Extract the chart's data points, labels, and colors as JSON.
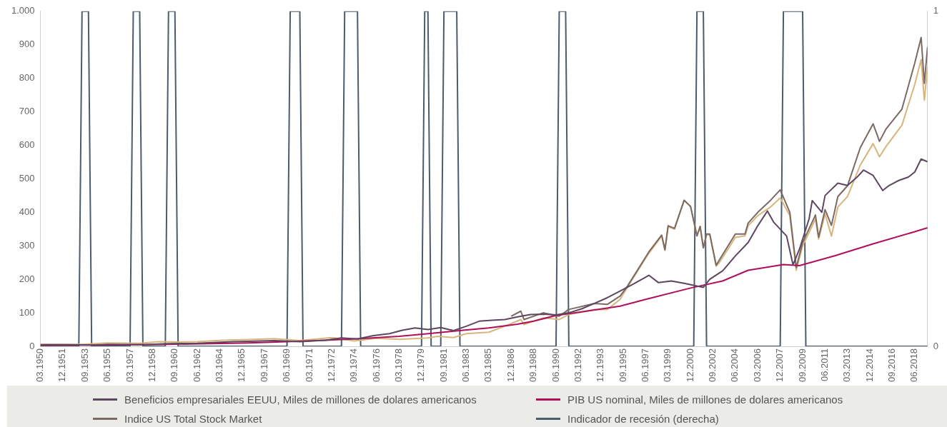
{
  "chart_data": {
    "type": "line",
    "legend": "bottom",
    "grid": false,
    "xlim": [
      "1950-03",
      "2019-06"
    ],
    "xticks": [
      {
        "value": "1950-03",
        "label": "03.1950"
      },
      {
        "value": "1951-12",
        "label": "12.1951"
      },
      {
        "value": "1953-09",
        "label": "09.1953"
      },
      {
        "value": "1955-06",
        "label": "06.1955"
      },
      {
        "value": "1957-03",
        "label": "03.1957"
      },
      {
        "value": "1958-12",
        "label": "12.1958"
      },
      {
        "value": "1960-09",
        "label": "09.1960"
      },
      {
        "value": "1962-06",
        "label": "06.1962"
      },
      {
        "value": "1964-03",
        "label": "03.1964"
      },
      {
        "value": "1965-12",
        "label": "12.1965"
      },
      {
        "value": "1967-09",
        "label": "09.1967"
      },
      {
        "value": "1969-06",
        "label": "06.1969"
      },
      {
        "value": "1971-03",
        "label": "03.1971"
      },
      {
        "value": "1972-12",
        "label": "12.1972"
      },
      {
        "value": "1974-09",
        "label": "09.1974"
      },
      {
        "value": "1976-06",
        "label": "06.1976"
      },
      {
        "value": "1978-03",
        "label": "03.1978"
      },
      {
        "value": "1979-12",
        "label": "12.1979"
      },
      {
        "value": "1981-09",
        "label": "09.1981"
      },
      {
        "value": "1983-06",
        "label": "06.1983"
      },
      {
        "value": "1985-03",
        "label": "03.1985"
      },
      {
        "value": "1986-12",
        "label": "12.1986"
      },
      {
        "value": "1988-09",
        "label": "09.1988"
      },
      {
        "value": "1990-06",
        "label": "06.1990"
      },
      {
        "value": "1992-03",
        "label": "03.1992"
      },
      {
        "value": "1993-12",
        "label": "12.1993"
      },
      {
        "value": "1995-09",
        "label": "09.1995"
      },
      {
        "value": "1997-06",
        "label": "06.1997"
      },
      {
        "value": "1999-03",
        "label": "03.1999"
      },
      {
        "value": "2000-12",
        "label": "12.2000"
      },
      {
        "value": "2002-09",
        "label": "09.2002"
      },
      {
        "value": "2004-06",
        "label": "06.2004"
      },
      {
        "value": "2006-03",
        "label": "03.2006"
      },
      {
        "value": "2007-12",
        "label": "12.2007"
      },
      {
        "value": "2009-09",
        "label": "09.2009"
      },
      {
        "value": "2011-06",
        "label": "06.2011"
      },
      {
        "value": "2013-03",
        "label": "03.2013"
      },
      {
        "value": "2014-12",
        "label": "12.2014"
      },
      {
        "value": "2016-09",
        "label": "09.2016"
      },
      {
        "value": "2018-06",
        "label": "06.2018"
      }
    ],
    "ylim": [
      0,
      1000
    ],
    "yticks": [
      0,
      100,
      200,
      300,
      400,
      500,
      600,
      700,
      800,
      900,
      {
        "value": 1000,
        "label": "1.000"
      }
    ],
    "y2lim": [
      0,
      1
    ],
    "y2ticks": [
      0,
      1
    ],
    "series": [
      {
        "name": "Beneficios empresariales EEUU, Miles de millones de dolares americanos",
        "color": "#5d4660",
        "x": [
          "1950-03",
          "1952-03",
          "1954-06",
          "1955-06",
          "1958-03",
          "1960-03",
          "1962-06",
          "1965-03",
          "1966-06",
          "1968-06",
          "1970-06",
          "1972-06",
          "1973-09",
          "1974-12",
          "1976-03",
          "1977-06",
          "1978-06",
          "1979-06",
          "1980-06",
          "1981-06",
          "1982-06",
          "1983-06",
          "1984-06",
          "1985-06",
          "1986-06",
          "1987-06",
          "1988-06",
          "1989-06",
          "1990-06",
          "1991-06",
          "1992-06",
          "1993-06",
          "1994-06",
          "1995-06",
          "1996-06",
          "1997-09",
          "1998-06",
          "1999-06",
          "2000-06",
          "2001-12",
          "2002-06",
          "2003-06",
          "2004-06",
          "2005-06",
          "2006-03",
          "2006-12",
          "2007-06",
          "2008-06",
          "2008-12",
          "2009-06",
          "2010-03",
          "2010-06",
          "2011-03",
          "2011-06",
          "2012-06",
          "2013-03",
          "2013-12",
          "2014-06",
          "2015-03",
          "2015-12",
          "2016-06",
          "2017-03",
          "2017-12",
          "2018-06",
          "2018-12",
          "2019-06"
        ],
        "values": [
          5,
          5,
          4,
          6,
          5,
          8,
          9,
          14,
          15,
          17,
          14,
          18,
          25,
          22,
          32,
          38,
          48,
          55,
          50,
          56,
          47,
          60,
          75,
          78,
          80,
          88,
          95,
          96,
          94,
          100,
          112,
          128,
          145,
          165,
          185,
          212,
          190,
          195,
          188,
          176,
          200,
          225,
          270,
          310,
          360,
          404,
          370,
          329,
          243,
          290,
          380,
          435,
          400,
          450,
          487,
          480,
          505,
          526,
          510,
          465,
          480,
          495,
          505,
          520,
          559,
          551
        ]
      },
      {
        "name": "PIB US nominal, Miles de millones de dolares americanos",
        "color": "#b0105a",
        "x": [
          "1950-03",
          "1955-03",
          "1960-03",
          "1963-06",
          "1966-06",
          "1969-06",
          "1972-06",
          "1975-03",
          "1978-03",
          "1980-03",
          "1983-03",
          "1985-03",
          "1987-06",
          "1988-09",
          "1990-06",
          "1992-06",
          "1995-06",
          "1997-06",
          "2000-12",
          "2003-06",
          "2005-06",
          "2008-03",
          "2009-06",
          "2012-03",
          "2015-03",
          "2018-06",
          "2019-06"
        ],
        "values": [
          3,
          4,
          6,
          8,
          10,
          14,
          18,
          23,
          30,
          37,
          48,
          55,
          66,
          75,
          92,
          103,
          120,
          140,
          174,
          195,
          227,
          244,
          241,
          270,
          306,
          342,
          354
        ]
      },
      {
        "name": "Indice US Total Stock Market",
        "color": "#7b6a64",
        "x": [
          "1986-12",
          "1987-09",
          "1987-12",
          "1989-06",
          "1990-09",
          "1991-06",
          "1993-06",
          "1994-06",
          "1995-06",
          "1995-12",
          "1997-09",
          "1998-09",
          "1998-12",
          "1999-03",
          "1999-09",
          "2000-06",
          "2000-12",
          "2001-06",
          "2001-09",
          "2001-12",
          "2002-03",
          "2002-06",
          "2002-12",
          "2003-03",
          "2004-06",
          "2005-03",
          "2005-06",
          "2006-03",
          "2007-03",
          "2007-12",
          "2008-09",
          "2009-03",
          "2009-09",
          "2010-09",
          "2010-12",
          "2011-06",
          "2011-12",
          "2012-06",
          "2013-03",
          "2014-03",
          "2015-03",
          "2015-09",
          "2016-03",
          "2017-06",
          "2018-06",
          "2018-12",
          "2019-03",
          "2019-06"
        ],
        "values": [
          90,
          105,
          80,
          100,
          90,
          110,
          128,
          125,
          150,
          175,
          282,
          332,
          288,
          360,
          352,
          436,
          418,
          330,
          358,
          294,
          335,
          335,
          242,
          258,
          335,
          335,
          368,
          400,
          436,
          467,
          400,
          235,
          310,
          392,
          326,
          408,
          361,
          447,
          479,
          593,
          664,
          612,
          648,
          708,
          845,
          922,
          785,
          893
        ]
      },
      {
        "color": "#d8b57c",
        "x": [
          "1950-03",
          "1953-06",
          "1955-06",
          "1957-12",
          "1959-06",
          "1960-12",
          "1962-06",
          "1964-06",
          "1966-06",
          "1968-06",
          "1970-06",
          "1972-12",
          "1974-09",
          "1976-06",
          "1978-03",
          "1980-06",
          "1981-03",
          "1982-06",
          "1983-06",
          "1985-03",
          "1986-06",
          "1987-09",
          "1987-12",
          "1989-06",
          "1990-09",
          "1991-06",
          "1993-06",
          "1994-06",
          "1995-06",
          "1995-12",
          "1997-09",
          "1998-09",
          "1998-12",
          "1999-03",
          "1999-09",
          "2000-06",
          "2000-12",
          "2001-06",
          "2001-09",
          "2001-12",
          "2002-03",
          "2002-06",
          "2002-12",
          "2003-03",
          "2004-06",
          "2005-03",
          "2005-06",
          "2006-03",
          "2007-03",
          "2007-12",
          "2008-09",
          "2009-03",
          "2009-09",
          "2010-09",
          "2010-12",
          "2011-06",
          "2011-12",
          "2012-06",
          "2013-03",
          "2014-03",
          "2015-03",
          "2015-09",
          "2016-03",
          "2017-06",
          "2018-06",
          "2018-12",
          "2019-03",
          "2019-06"
        ],
        "values": [
          6,
          6,
          10,
          9,
          14,
          13,
          14,
          18,
          20,
          23,
          17,
          26,
          16,
          24,
          21,
          25,
          30,
          26,
          38,
          42,
          60,
          80,
          65,
          85,
          80,
          95,
          110,
          110,
          140,
          172,
          278,
          329,
          286,
          357,
          350,
          436,
          416,
          329,
          357,
          294,
          333,
          333,
          239,
          250,
          325,
          330,
          360,
          390,
          416,
          443,
          390,
          227,
          300,
          380,
          320,
          395,
          329,
          416,
          447,
          541,
          605,
          566,
          596,
          660,
          781,
          856,
          735,
          833
        ]
      },
      {
        "name": "Indicador de recesión (derecha)",
        "color": "#4a5c6e",
        "axis": "y2",
        "x": [
          "1950-03",
          "1953-03",
          "1953-06",
          "1953-12",
          "1954-03",
          "1957-03",
          "1957-06",
          "1957-12",
          "1958-03",
          "1959-12",
          "1960-03",
          "1960-09",
          "1960-12",
          "1969-06",
          "1969-09",
          "1970-06",
          "1970-09",
          "1973-09",
          "1973-12",
          "1974-12",
          "1975-03",
          "1979-12",
          "1980-03",
          "1980-06",
          "1980-09",
          "1981-06",
          "1981-09",
          "1982-09",
          "1982-12",
          "1990-06",
          "1990-09",
          "1991-03",
          "1991-06",
          "2001-03",
          "2001-06",
          "2001-12",
          "2002-03",
          "2007-12",
          "2008-03",
          "2009-09",
          "2009-12",
          "2019-06"
        ],
        "values": [
          0,
          0,
          1,
          1,
          0,
          0,
          1,
          1,
          0,
          0,
          1,
          1,
          0,
          0,
          1,
          1,
          0,
          0,
          1,
          1,
          0,
          0,
          1,
          1,
          0,
          0,
          1,
          1,
          0,
          0,
          1,
          1,
          0,
          0,
          1,
          1,
          0,
          0,
          1,
          1,
          0,
          0
        ]
      }
    ]
  }
}
